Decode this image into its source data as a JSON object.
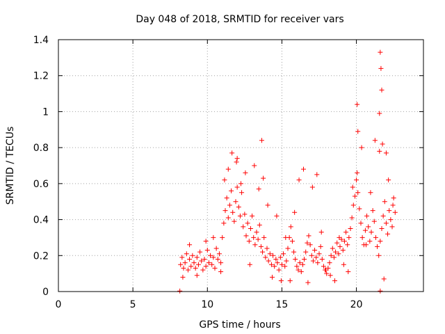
{
  "chart_data": {
    "type": "scatter",
    "title": "Day 048 of 2018, SRMTID for receiver vars",
    "xlabel": "GPS time / hours",
    "ylabel": "SRMTID / TECUs",
    "xlim": [
      0,
      24.5
    ],
    "ylim": [
      0,
      1.4
    ],
    "x_ticks": [
      0,
      5,
      10,
      15,
      20
    ],
    "x_tick_labels": [
      "0",
      "5",
      "10",
      "15",
      "20"
    ],
    "y_ticks": [
      0,
      0.2,
      0.4,
      0.6,
      0.8,
      1.0,
      1.2,
      1.4
    ],
    "y_tick_labels": [
      "0",
      "0.2",
      "0.4",
      "0.6",
      "0.8",
      "1",
      "1.2",
      "1.4"
    ],
    "grid": true,
    "marker": "+",
    "marker_color": "#ff0000",
    "series": [
      {
        "name": "SRMTID",
        "x": [
          8.2,
          8.3,
          8.4,
          8.5,
          8.6,
          8.7,
          8.8,
          8.9,
          9.0,
          9.1,
          9.2,
          9.3,
          9.4,
          9.5,
          9.6,
          9.7,
          9.8,
          9.9,
          10.0,
          10.1,
          10.2,
          10.3,
          10.4,
          10.5,
          10.6,
          10.7,
          10.8,
          10.9,
          11.0,
          11.1,
          11.2,
          11.3,
          11.4,
          11.5,
          11.6,
          11.7,
          11.8,
          11.9,
          12.0,
          12.1,
          12.2,
          12.3,
          12.4,
          12.5,
          12.6,
          12.7,
          12.8,
          12.9,
          13.0,
          13.1,
          13.2,
          13.3,
          13.4,
          13.5,
          13.6,
          13.7,
          13.8,
          13.9,
          14.0,
          14.1,
          14.2,
          14.3,
          14.4,
          14.5,
          14.6,
          14.7,
          14.8,
          14.9,
          15.0,
          15.1,
          15.2,
          15.3,
          15.4,
          15.5,
          15.6,
          15.7,
          15.8,
          15.9,
          16.0,
          16.1,
          16.2,
          16.3,
          16.4,
          16.5,
          16.6,
          16.7,
          16.8,
          16.9,
          17.0,
          17.1,
          17.2,
          17.3,
          17.4,
          17.5,
          17.6,
          17.7,
          17.8,
          17.9,
          18.0,
          18.1,
          18.2,
          18.3,
          18.4,
          18.5,
          18.6,
          18.7,
          18.8,
          18.9,
          19.0,
          19.1,
          19.2,
          19.3,
          19.4,
          19.5,
          19.6,
          19.7,
          19.8,
          19.9,
          20.0,
          20.1,
          20.2,
          20.3,
          20.4,
          20.5,
          20.6,
          20.7,
          20.8,
          20.9,
          21.0,
          21.1,
          21.2,
          21.3,
          21.4,
          21.5,
          21.6,
          21.7,
          21.8,
          21.9,
          22.0,
          22.1,
          22.2,
          22.3,
          22.4,
          22.5,
          22.6,
          8.35,
          8.8,
          9.3,
          9.9,
          10.4,
          10.9,
          11.15,
          11.4,
          11.65,
          11.95,
          12.25,
          12.55,
          12.85,
          13.15,
          13.45,
          13.75,
          14.05,
          14.35,
          14.65,
          14.95,
          15.25,
          15.55,
          15.85,
          16.15,
          16.45,
          16.75,
          17.05,
          17.35,
          17.65,
          17.95,
          18.25,
          18.55,
          18.85,
          19.15,
          19.45,
          19.75,
          20.05,
          20.35,
          20.65,
          20.95,
          21.25,
          21.55,
          21.85,
          22.15,
          22.45,
          21.6,
          21.65,
          21.7,
          21.55,
          20.05,
          20.1,
          21.75,
          22.0,
          13.65,
          12.0,
          8.15,
          21.6
        ],
        "y": [
          0.15,
          0.19,
          0.13,
          0.16,
          0.21,
          0.12,
          0.18,
          0.14,
          0.2,
          0.16,
          0.13,
          0.19,
          0.15,
          0.22,
          0.17,
          0.12,
          0.18,
          0.14,
          0.23,
          0.16,
          0.2,
          0.15,
          0.19,
          0.13,
          0.24,
          0.18,
          0.21,
          0.16,
          0.3,
          0.38,
          0.45,
          0.52,
          0.41,
          0.48,
          0.56,
          0.44,
          0.39,
          0.5,
          0.58,
          0.47,
          0.42,
          0.55,
          0.36,
          0.43,
          0.31,
          0.38,
          0.28,
          0.35,
          0.42,
          0.3,
          0.26,
          0.33,
          0.29,
          0.37,
          0.25,
          0.22,
          0.3,
          0.19,
          0.24,
          0.17,
          0.21,
          0.15,
          0.2,
          0.14,
          0.18,
          0.16,
          0.12,
          0.19,
          0.15,
          0.21,
          0.14,
          0.17,
          0.24,
          0.3,
          0.36,
          0.28,
          0.22,
          0.18,
          0.14,
          0.12,
          0.16,
          0.11,
          0.15,
          0.18,
          0.22,
          0.27,
          0.31,
          0.26,
          0.2,
          0.17,
          0.23,
          0.19,
          0.16,
          0.21,
          0.25,
          0.18,
          0.14,
          0.12,
          0.1,
          0.13,
          0.16,
          0.2,
          0.24,
          0.19,
          0.22,
          0.27,
          0.21,
          0.25,
          0.29,
          0.23,
          0.28,
          0.33,
          0.26,
          0.3,
          0.35,
          0.41,
          0.48,
          0.53,
          0.62,
          0.55,
          0.46,
          0.38,
          0.3,
          0.26,
          0.34,
          0.42,
          0.36,
          0.28,
          0.33,
          0.45,
          0.39,
          0.3,
          0.25,
          0.2,
          0.28,
          0.35,
          0.42,
          0.5,
          0.38,
          0.32,
          0.45,
          0.4,
          0.36,
          0.52,
          0.44,
          0.08,
          0.26,
          0.09,
          0.28,
          0.3,
          0.11,
          0.62,
          0.68,
          0.77,
          0.72,
          0.6,
          0.66,
          0.15,
          0.7,
          0.57,
          0.63,
          0.48,
          0.08,
          0.42,
          0.06,
          0.3,
          0.06,
          0.44,
          0.62,
          0.68,
          0.05,
          0.58,
          0.65,
          0.33,
          0.12,
          0.09,
          0.06,
          0.3,
          0.15,
          0.11,
          0.58,
          0.66,
          0.8,
          0.26,
          0.55,
          0.84,
          0.78,
          0.07,
          0.62,
          0.48,
          1.33,
          1.24,
          1.12,
          0.99,
          1.04,
          0.89,
          0.82,
          0.77,
          0.84,
          0.74,
          0.003,
          0.003
        ]
      }
    ]
  }
}
